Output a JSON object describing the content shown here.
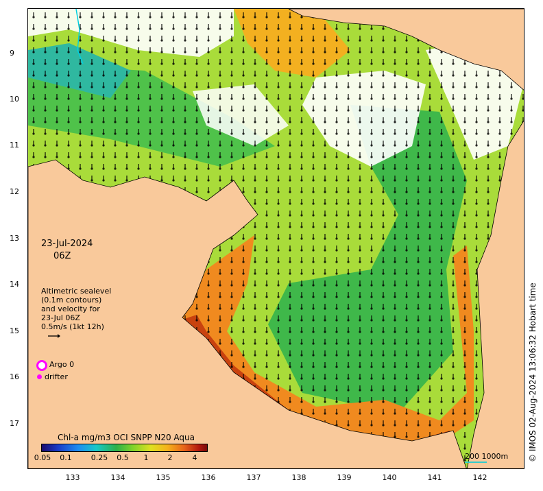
{
  "map": {
    "latitude_labels": [
      "9",
      "10",
      "11",
      "12",
      "13",
      "14",
      "15",
      "16",
      "17"
    ],
    "longitude_labels": [
      "133",
      "134",
      "135",
      "136",
      "137",
      "138",
      "139",
      "140",
      "141",
      "142"
    ],
    "date": "23-Jul-2024",
    "time": "06Z",
    "legend_lines": [
      "Altimetric sealevel",
      "(0.1m contours)",
      "and velocity for",
      "23-Jul 06Z",
      "0.5m/s (1kt 12h)"
    ],
    "argo_label": "Argo 0",
    "drifter_label": "drifter",
    "colorbar": {
      "title": "Chl-a mg/m3 OCI SNPP N20 Aqua",
      "tick_labels": [
        "0.05",
        "0.1",
        "0.25",
        "0.5",
        "1",
        "2",
        "4"
      ]
    },
    "scale_label": "200  1000m",
    "watermark": "© IMOS 02-Aug-2024 13:06:32 Hobart time",
    "colors": {
      "land": "#f9c99b",
      "cloud": "#ffffff",
      "marker": "#ff00ff",
      "scale_bar": "#33cccc"
    }
  }
}
